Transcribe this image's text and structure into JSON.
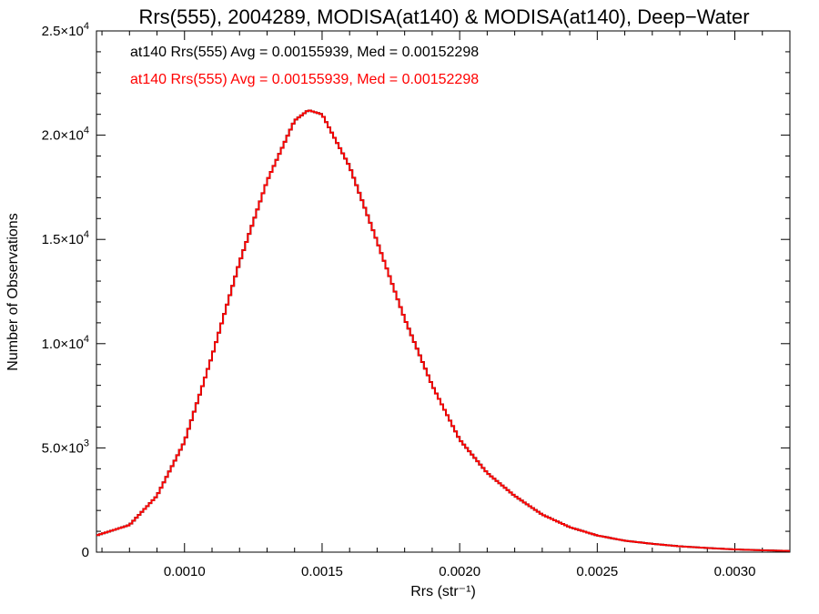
{
  "chart_data": {
    "type": "histogram",
    "title": "Rrs(555), 2004289, MODISA(at140) & MODISA(at140), Deep−Water",
    "xlabel": "Rrs (str⁻¹)",
    "ylabel": "Number of Observations",
    "xlim": [
      0.00068,
      0.0032
    ],
    "ylim": [
      0,
      25000
    ],
    "x_ticks": [
      0.001,
      0.0015,
      0.002,
      0.0025,
      0.003
    ],
    "x_tick_labels": [
      "0.0010",
      "0.0015",
      "0.0020",
      "0.0025",
      "0.0030"
    ],
    "y_ticks": [
      0,
      5000,
      10000,
      15000,
      20000,
      25000
    ],
    "y_tick_labels": [
      {
        "mant": "0",
        "exp": ""
      },
      {
        "mant": "5.0×10",
        "exp": "3"
      },
      {
        "mant": "1.0×10",
        "exp": "4"
      },
      {
        "mant": "1.5×10",
        "exp": "4"
      },
      {
        "mant": "2.0×10",
        "exp": "4"
      },
      {
        "mant": "2.5×10",
        "exp": "4"
      }
    ],
    "grid": false,
    "legend_position": "top-left",
    "series": [
      {
        "name": "at140 Rrs(555) Avg = 0.00155939, Med = 0.00152298",
        "color": "#000000",
        "points": [
          [
            0.00068,
            800
          ],
          [
            0.0008,
            1300
          ],
          [
            0.0009,
            2700
          ],
          [
            0.001,
            5300
          ],
          [
            0.0011,
            9400
          ],
          [
            0.0012,
            13900
          ],
          [
            0.0013,
            17800
          ],
          [
            0.0014,
            20700
          ],
          [
            0.00145,
            21200
          ],
          [
            0.0015,
            21000
          ],
          [
            0.0016,
            18500
          ],
          [
            0.0017,
            14900
          ],
          [
            0.0018,
            11200
          ],
          [
            0.0019,
            8000
          ],
          [
            0.002,
            5400
          ],
          [
            0.0021,
            3800
          ],
          [
            0.0022,
            2700
          ],
          [
            0.0023,
            1800
          ],
          [
            0.0024,
            1200
          ],
          [
            0.0025,
            800
          ],
          [
            0.0026,
            550
          ],
          [
            0.0027,
            400
          ],
          [
            0.0028,
            280
          ],
          [
            0.0029,
            200
          ],
          [
            0.003,
            130
          ],
          [
            0.0031,
            90
          ],
          [
            0.0032,
            60
          ]
        ]
      },
      {
        "name": "at140 Rrs(555) Avg = 0.00155939, Med = 0.00152298",
        "color": "#ff0000",
        "points": [
          [
            0.00068,
            800
          ],
          [
            0.0008,
            1300
          ],
          [
            0.0009,
            2700
          ],
          [
            0.001,
            5300
          ],
          [
            0.0011,
            9400
          ],
          [
            0.0012,
            13900
          ],
          [
            0.0013,
            17800
          ],
          [
            0.0014,
            20700
          ],
          [
            0.00145,
            21200
          ],
          [
            0.0015,
            21000
          ],
          [
            0.0016,
            18500
          ],
          [
            0.0017,
            14900
          ],
          [
            0.0018,
            11200
          ],
          [
            0.0019,
            8000
          ],
          [
            0.002,
            5400
          ],
          [
            0.0021,
            3800
          ],
          [
            0.0022,
            2700
          ],
          [
            0.0023,
            1800
          ],
          [
            0.0024,
            1200
          ],
          [
            0.0025,
            800
          ],
          [
            0.0026,
            550
          ],
          [
            0.0027,
            400
          ],
          [
            0.0028,
            280
          ],
          [
            0.0029,
            200
          ],
          [
            0.003,
            130
          ],
          [
            0.0031,
            90
          ],
          [
            0.0032,
            60
          ]
        ]
      }
    ]
  }
}
